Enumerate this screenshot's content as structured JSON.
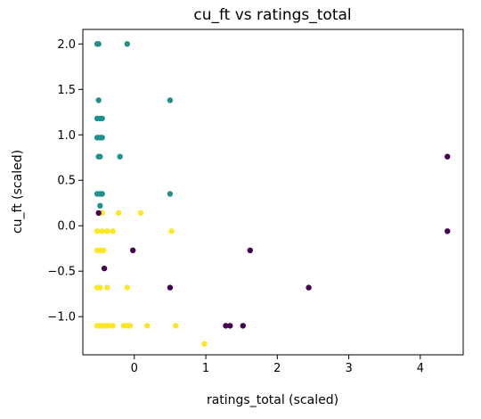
{
  "chart_data": {
    "type": "scatter",
    "title": "cu_ft vs ratings_total",
    "xlabel": "ratings_total (scaled)",
    "ylabel": "cu_ft (scaled)",
    "xlim": [
      -0.72,
      4.6
    ],
    "ylim": [
      -1.42,
      2.16
    ],
    "xticks": [
      0,
      1,
      2,
      3,
      4
    ],
    "xtick_labels": [
      "0",
      "1",
      "2",
      "3",
      "4"
    ],
    "yticks": [
      -1.0,
      -0.5,
      0.0,
      0.5,
      1.0,
      1.5,
      2.0
    ],
    "ytick_labels": [
      "−1.0",
      "−0.5",
      "0.0",
      "0.5",
      "1.0",
      "1.5",
      "2.0"
    ],
    "grid": false,
    "colors": {
      "cluster_teal": "#21918c",
      "cluster_yellow": "#fde725",
      "cluster_purple": "#440154"
    },
    "series": [
      {
        "color": "#21918c",
        "points": [
          [
            -0.52,
            2.0
          ],
          [
            -0.5,
            2.0
          ],
          [
            -0.1,
            2.0
          ],
          [
            -0.5,
            1.38
          ],
          [
            0.5,
            1.38
          ],
          [
            -0.52,
            1.18
          ],
          [
            -0.48,
            1.18
          ],
          [
            -0.45,
            1.18
          ],
          [
            -0.52,
            0.97
          ],
          [
            -0.48,
            0.97
          ],
          [
            -0.45,
            0.97
          ],
          [
            -0.5,
            0.76
          ],
          [
            -0.48,
            0.76
          ],
          [
            -0.2,
            0.76
          ],
          [
            -0.52,
            0.35
          ],
          [
            -0.48,
            0.35
          ],
          [
            -0.45,
            0.35
          ],
          [
            0.5,
            0.35
          ],
          [
            -0.48,
            0.22
          ]
        ]
      },
      {
        "color": "#fde725",
        "points": [
          [
            -0.45,
            0.14
          ],
          [
            -0.22,
            0.14
          ],
          [
            0.09,
            0.14
          ],
          [
            -0.52,
            -0.06
          ],
          [
            -0.45,
            -0.06
          ],
          [
            -0.38,
            -0.06
          ],
          [
            -0.3,
            -0.06
          ],
          [
            0.52,
            -0.06
          ],
          [
            -0.52,
            -0.27
          ],
          [
            -0.48,
            -0.27
          ],
          [
            -0.43,
            -0.27
          ],
          [
            -0.52,
            -0.68
          ],
          [
            -0.48,
            -0.68
          ],
          [
            -0.38,
            -0.68
          ],
          [
            -0.1,
            -0.68
          ],
          [
            -0.52,
            -1.1
          ],
          [
            -0.48,
            -1.1
          ],
          [
            -0.45,
            -1.1
          ],
          [
            -0.4,
            -1.1
          ],
          [
            -0.36,
            -1.1
          ],
          [
            -0.3,
            -1.1
          ],
          [
            -0.15,
            -1.1
          ],
          [
            -0.1,
            -1.1
          ],
          [
            -0.06,
            -1.1
          ],
          [
            0.18,
            -1.1
          ],
          [
            0.58,
            -1.1
          ],
          [
            0.98,
            -1.3
          ]
        ]
      },
      {
        "color": "#440154",
        "points": [
          [
            -0.5,
            0.14
          ],
          [
            -0.42,
            -0.47
          ],
          [
            -0.02,
            -0.27
          ],
          [
            0.5,
            -0.68
          ],
          [
            1.28,
            -1.1
          ],
          [
            1.34,
            -1.1
          ],
          [
            1.52,
            -1.1
          ],
          [
            1.62,
            -0.27
          ],
          [
            2.44,
            -0.68
          ],
          [
            4.38,
            0.76
          ],
          [
            4.38,
            -0.06
          ]
        ]
      }
    ]
  }
}
